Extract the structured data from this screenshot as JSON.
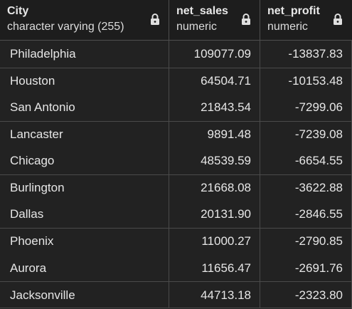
{
  "columns": [
    {
      "name": "City",
      "type": "character varying (255)",
      "icon": "lock-icon"
    },
    {
      "name": "net_sales",
      "type": "numeric",
      "icon": "lock-icon"
    },
    {
      "name": "net_profit",
      "type": "numeric",
      "icon": "lock-icon"
    }
  ],
  "rows": [
    {
      "city": "Philadelphia",
      "net_sales": "109077.09",
      "net_profit": "-13837.83"
    },
    {
      "city": "Houston",
      "net_sales": "64504.71",
      "net_profit": "-10153.48"
    },
    {
      "city": "San Antonio",
      "net_sales": "21843.54",
      "net_profit": "-7299.06"
    },
    {
      "city": "Lancaster",
      "net_sales": "9891.48",
      "net_profit": "-7239.08"
    },
    {
      "city": "Chicago",
      "net_sales": "48539.59",
      "net_profit": "-6654.55"
    },
    {
      "city": "Burlington",
      "net_sales": "21668.08",
      "net_profit": "-3622.88"
    },
    {
      "city": "Dallas",
      "net_sales": "20131.90",
      "net_profit": "-2846.55"
    },
    {
      "city": "Phoenix",
      "net_sales": "11000.27",
      "net_profit": "-2790.85"
    },
    {
      "city": "Aurora",
      "net_sales": "11656.47",
      "net_profit": "-2691.76"
    },
    {
      "city": "Jacksonville",
      "net_sales": "44713.18",
      "net_profit": "-2323.80"
    }
  ],
  "colors": {
    "background": "#222222",
    "header_background": "#1d1d1d",
    "grid_line": "#4a4a4a",
    "text": "#e6e6e6"
  }
}
